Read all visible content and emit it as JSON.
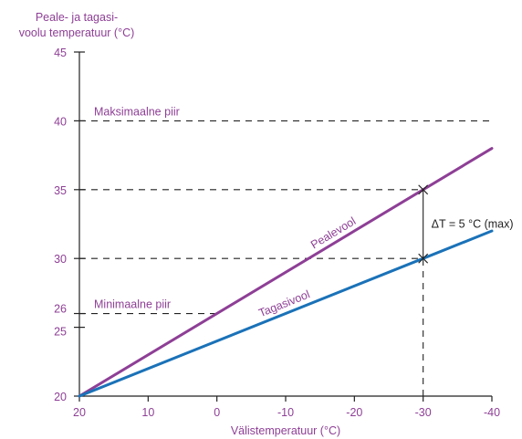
{
  "chart_data": {
    "type": "line",
    "ylabel_line1": "Peale- ja tagasi-",
    "ylabel_line2": "voolu temperatuur (°C)",
    "xlabel": "Välistemperatuur (°C)",
    "x": [
      20,
      -30,
      -40
    ],
    "xlim": [
      20,
      -40
    ],
    "ylim": [
      20,
      45
    ],
    "xticks": [
      20,
      10,
      0,
      -10,
      -20,
      -30,
      -40
    ],
    "xtick_labels": [
      "20",
      "10",
      "0",
      "-10",
      "-20",
      "-30",
      "-40"
    ],
    "yticks": [
      20,
      25,
      26,
      30,
      35,
      40,
      45
    ],
    "ytick_labels": [
      "20",
      "25",
      "26",
      "30",
      "35",
      "40",
      "45"
    ],
    "series": [
      {
        "name": "Pealevool",
        "x": [
          20,
          -30,
          -40
        ],
        "values": [
          20,
          35,
          38
        ],
        "color": "#8e3f96"
      },
      {
        "name": "Tagasivool",
        "x": [
          20,
          -30,
          -40
        ],
        "values": [
          20,
          30,
          32
        ],
        "color": "#1a72b8"
      }
    ],
    "reference_lines": [
      {
        "label": "Maksimaalne piir",
        "y": 40,
        "x_from": 20,
        "x_to": -40
      },
      {
        "label": "Minimaalne piir",
        "y": 26,
        "x_from": 20,
        "x_to": 0
      }
    ],
    "guide_lines": [
      {
        "y": 35,
        "x_from": 20,
        "x_to": -30
      },
      {
        "y": 30,
        "x_from": 20,
        "x_to": -30
      }
    ],
    "vertical_guide": {
      "x": -30,
      "y_from": 20,
      "y_to": 30
    },
    "delta_annotation": {
      "label": "ΔT = 5 °C (max)",
      "x": -30,
      "y_from": 30,
      "y_to": 35
    },
    "colors": {
      "text": "#8e3f96",
      "axis": "#222222"
    }
  }
}
